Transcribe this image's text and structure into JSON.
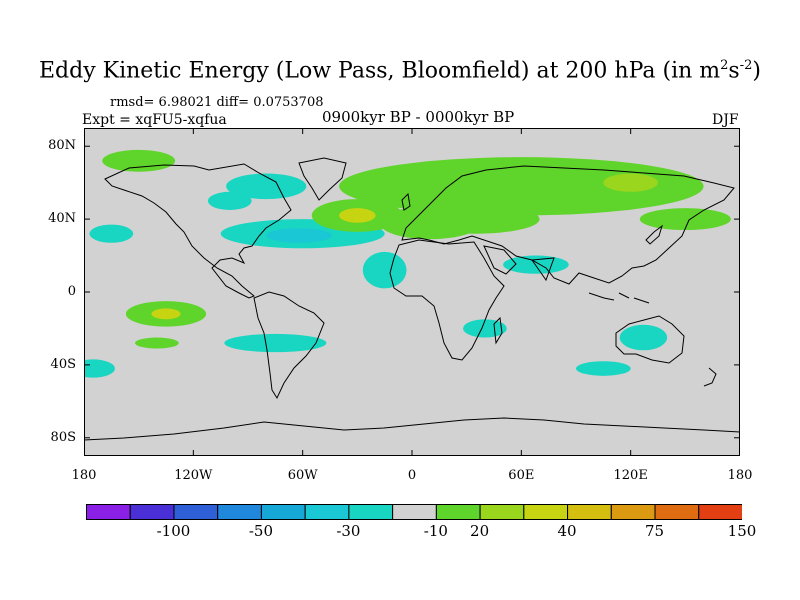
{
  "title": {
    "main": "Eddy Kinetic Energy (Low Pass, Bloomfield) at 200 hPa (in m",
    "sup1": "2",
    "mid": "s",
    "sup2": "-2",
    "end": ")"
  },
  "stats": "rmsd= 6.98021 diff= 0.0753708",
  "experiment": "Expt = xqFU5-xqfua",
  "period": "0900kyr BP - 0000kyr BP",
  "season": "DJF",
  "y_axis": {
    "ticks": [
      {
        "value": 80,
        "label": "80N"
      },
      {
        "value": 40,
        "label": "40N"
      },
      {
        "value": 0,
        "label": "0"
      },
      {
        "value": -40,
        "label": "40S"
      },
      {
        "value": -80,
        "label": "80S"
      }
    ]
  },
  "x_axis": {
    "ticks": [
      {
        "value": -180,
        "label": "180"
      },
      {
        "value": -120,
        "label": "120W"
      },
      {
        "value": -60,
        "label": "60W"
      },
      {
        "value": 0,
        "label": "0"
      },
      {
        "value": 60,
        "label": "60E"
      },
      {
        "value": 120,
        "label": "120E"
      },
      {
        "value": 180,
        "label": "180"
      }
    ]
  },
  "colorbar": {
    "colors": [
      "#8a1fe6",
      "#4a2fd6",
      "#2f5fd6",
      "#1f87dc",
      "#16a9d8",
      "#1ac7d4",
      "#18d6c2",
      "#d2d2d2",
      "#5fd42a",
      "#9ad61e",
      "#c6d412",
      "#d4bf10",
      "#dc9a12",
      "#e06c12",
      "#e24012"
    ],
    "labels": [
      {
        "after_index": 1,
        "text": "-100"
      },
      {
        "after_index": 3,
        "text": "-50"
      },
      {
        "after_index": 5,
        "text": "-30"
      },
      {
        "after_index": 7,
        "text": "-10"
      },
      {
        "after_index": 8,
        "text": "20"
      },
      {
        "after_index": 10,
        "text": "40"
      },
      {
        "after_index": 12,
        "text": "75"
      },
      {
        "after_index": 14,
        "text": "150"
      }
    ]
  },
  "colors": {
    "background": "#d2d2d2",
    "coast": "#000000",
    "cyan": "#18d6c2",
    "cyan_dark": "#1ac7d4",
    "green": "#5fd42a",
    "green_light": "#9ad61e",
    "yellow": "#c6d412"
  },
  "anomaly_regions": [
    {
      "level": "green",
      "lon": -150,
      "lat": 72,
      "rx": 20,
      "ry": 6
    },
    {
      "level": "cyan",
      "lon": -80,
      "lat": 58,
      "rx": 22,
      "ry": 7
    },
    {
      "level": "cyan",
      "lon": -100,
      "lat": 50,
      "rx": 12,
      "ry": 5
    },
    {
      "level": "cyan",
      "lon": -165,
      "lat": 32,
      "rx": 12,
      "ry": 5
    },
    {
      "level": "cyan",
      "lon": -60,
      "lat": 32,
      "rx": 45,
      "ry": 8
    },
    {
      "level": "cyan_dark",
      "lon": -62,
      "lat": 31,
      "rx": 18,
      "ry": 4
    },
    {
      "level": "green",
      "lon": -30,
      "lat": 42,
      "rx": 25,
      "ry": 9
    },
    {
      "level": "yellow",
      "lon": -30,
      "lat": 42,
      "rx": 10,
      "ry": 4
    },
    {
      "level": "green",
      "lon": 60,
      "lat": 58,
      "rx": 100,
      "ry": 16
    },
    {
      "level": "green",
      "lon": 10,
      "lat": 38,
      "rx": 28,
      "ry": 9
    },
    {
      "level": "green",
      "lon": 35,
      "lat": 40,
      "rx": 35,
      "ry": 8
    },
    {
      "level": "green",
      "lon": 150,
      "lat": 40,
      "rx": 25,
      "ry": 6
    },
    {
      "level": "green_light",
      "lon": 120,
      "lat": 60,
      "rx": 15,
      "ry": 5
    },
    {
      "level": "cyan",
      "lon": -15,
      "lat": 12,
      "rx": 12,
      "ry": 10
    },
    {
      "level": "cyan",
      "lon": 68,
      "lat": 15,
      "rx": 18,
      "ry": 5
    },
    {
      "level": "green",
      "lon": -135,
      "lat": -12,
      "rx": 22,
      "ry": 7
    },
    {
      "level": "yellow",
      "lon": -135,
      "lat": -12,
      "rx": 8,
      "ry": 3
    },
    {
      "level": "green",
      "lon": -140,
      "lat": -28,
      "rx": 12,
      "ry": 3
    },
    {
      "level": "cyan",
      "lon": -75,
      "lat": -28,
      "rx": 28,
      "ry": 5
    },
    {
      "level": "cyan",
      "lon": 40,
      "lat": -20,
      "rx": 12,
      "ry": 5
    },
    {
      "level": "cyan",
      "lon": 127,
      "lat": -25,
      "rx": 13,
      "ry": 7
    },
    {
      "level": "cyan",
      "lon": -175,
      "lat": -42,
      "rx": 12,
      "ry": 5
    },
    {
      "level": "cyan",
      "lon": 105,
      "lat": -42,
      "rx": 15,
      "ry": 4
    }
  ]
}
